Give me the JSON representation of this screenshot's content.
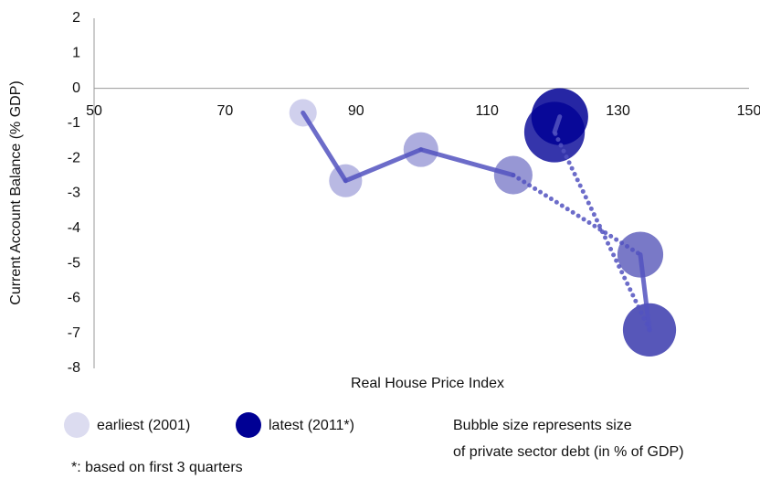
{
  "chart_data": {
    "type": "bubble",
    "x_label": "Real House Price Index",
    "y_label": "Current Account  Balance (% GDP)",
    "xlim": [
      50,
      150
    ],
    "xticks": [
      50,
      70,
      90,
      110,
      130,
      150
    ],
    "ylim": [
      -8,
      2
    ],
    "yticks": [
      2,
      1,
      0,
      -1,
      -2,
      -3,
      -4,
      -5,
      -6,
      -7,
      -8
    ],
    "series": [
      {
        "x": [
          81.9,
          88.4,
          99.9,
          114,
          133.4,
          134.8,
          120.3,
          121.1
        ],
        "values": [
          -0.7,
          -2.64,
          -1.75,
          -2.48,
          -4.75,
          -6.9,
          -1.25,
          -0.81
        ],
        "sizes": [
          112,
          162,
          180,
          220,
          312,
          420,
          545,
          480
        ],
        "colors": [
          "#c8c8ea",
          "#adadde",
          "#9f9fd8",
          "#8585cc",
          "#6161bd",
          "#3a3aad",
          "#12129c",
          "#000094"
        ],
        "line_color": "#5252c0",
        "line_styles": [
          "solid",
          "solid",
          "solid",
          "dotted",
          "solid",
          "dotted",
          "solid"
        ]
      }
    ],
    "legend": [
      {
        "name": "earliest (2001)",
        "color": "#dcdcf0"
      },
      {
        "name": "latest (2011*)",
        "color": "#000094"
      }
    ],
    "annotation": [
      "Bubble size represents size",
      "of private sector debt (in % of GDP)"
    ],
    "footnote": "*: based on first 3 quarters"
  }
}
